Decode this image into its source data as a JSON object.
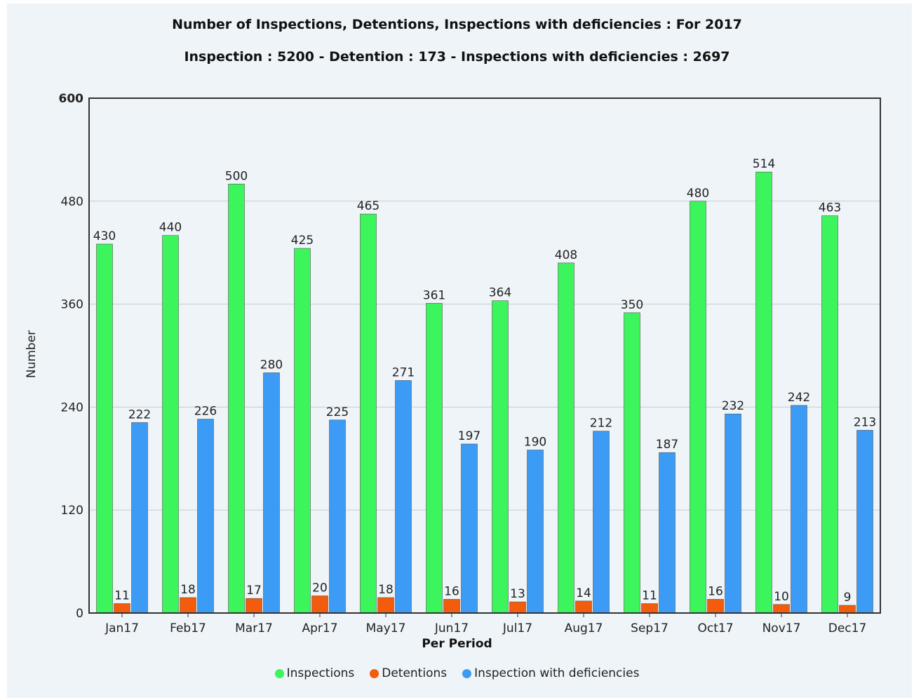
{
  "chart_data": {
    "type": "bar",
    "title": "Number of Inspections, Detentions, Inspections with deficiencies : For 2017",
    "subtitle": "Inspection : 5200 - Detention : 173 - Inspections with deficiencies : 2697",
    "xlabel": "Per Period",
    "ylabel": "Number",
    "ylim": [
      0,
      600
    ],
    "yticks": [
      0,
      120,
      240,
      360,
      480,
      600
    ],
    "grid": true,
    "legend_position": "bottom",
    "categories": [
      "Jan17",
      "Feb17",
      "Mar17",
      "Apr17",
      "May17",
      "Jun17",
      "Jul17",
      "Aug17",
      "Sep17",
      "Oct17",
      "Nov17",
      "Dec17"
    ],
    "series": [
      {
        "name": "Inspections",
        "color": "#3cf55c",
        "values": [
          430,
          440,
          500,
          425,
          465,
          361,
          364,
          408,
          350,
          480,
          514,
          463
        ]
      },
      {
        "name": "Detentions",
        "color": "#f25c0c",
        "values": [
          11,
          18,
          17,
          20,
          18,
          16,
          13,
          14,
          11,
          16,
          10,
          9
        ]
      },
      {
        "name": "Inspection with deficiencies",
        "color": "#3c9cf5",
        "values": [
          222,
          226,
          280,
          225,
          271,
          197,
          190,
          212,
          187,
          232,
          242,
          213
        ]
      }
    ]
  }
}
